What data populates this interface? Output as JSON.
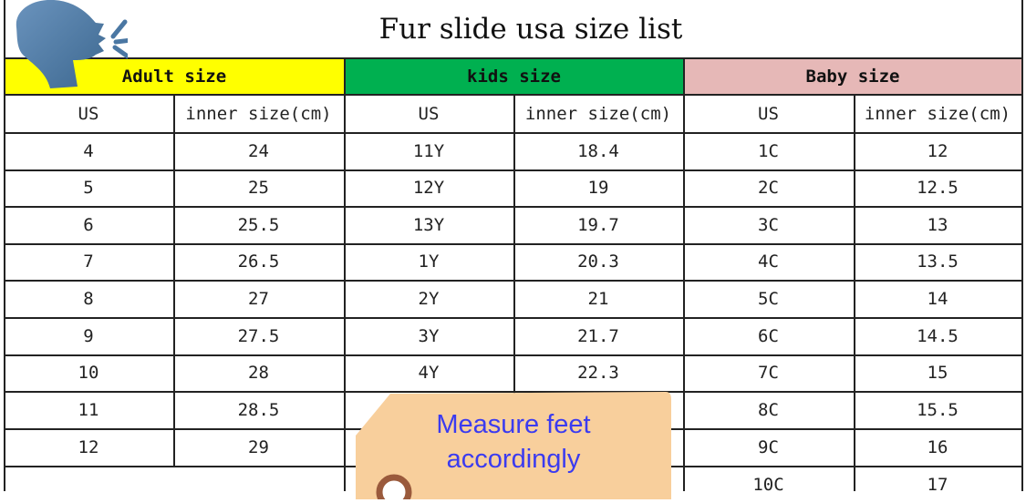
{
  "title": "Fur slide usa size list",
  "icon": "speaking-head-icon",
  "sections": [
    {
      "label": "Adult size",
      "color": "#ffff00"
    },
    {
      "label": "kids size",
      "color": "#00b050"
    },
    {
      "label": "Baby size",
      "color": "#e6b8b7"
    }
  ],
  "column_headers": [
    "US",
    "inner size(cm)",
    "US",
    "inner size(cm)",
    "US",
    "inner size(cm)"
  ],
  "rows": [
    [
      "4",
      "24",
      "11Y",
      "18.4",
      "1C",
      "12"
    ],
    [
      "5",
      "25",
      "12Y",
      "19",
      "2C",
      "12.5"
    ],
    [
      "6",
      "25.5",
      "13Y",
      "19.7",
      "3C",
      "13"
    ],
    [
      "7",
      "26.5",
      "1Y",
      "20.3",
      "4C",
      "13.5"
    ],
    [
      "8",
      "27",
      "2Y",
      "21",
      "5C",
      "14"
    ],
    [
      "9",
      "27.5",
      "3Y",
      "21.7",
      "6C",
      "14.5"
    ],
    [
      "10",
      "28",
      "4Y",
      "22.3",
      "7C",
      "15"
    ],
    [
      "11",
      "28.5",
      "",
      "",
      "8C",
      "15.5"
    ],
    [
      "12",
      "29",
      "",
      "",
      "9C",
      "16"
    ],
    [
      "",
      "",
      "",
      "",
      "10C",
      "17"
    ]
  ],
  "tag": {
    "line1": "Measure feet",
    "line2": "accordingly",
    "color": "#f8cf9c",
    "text_color": "#3b3bf0"
  }
}
